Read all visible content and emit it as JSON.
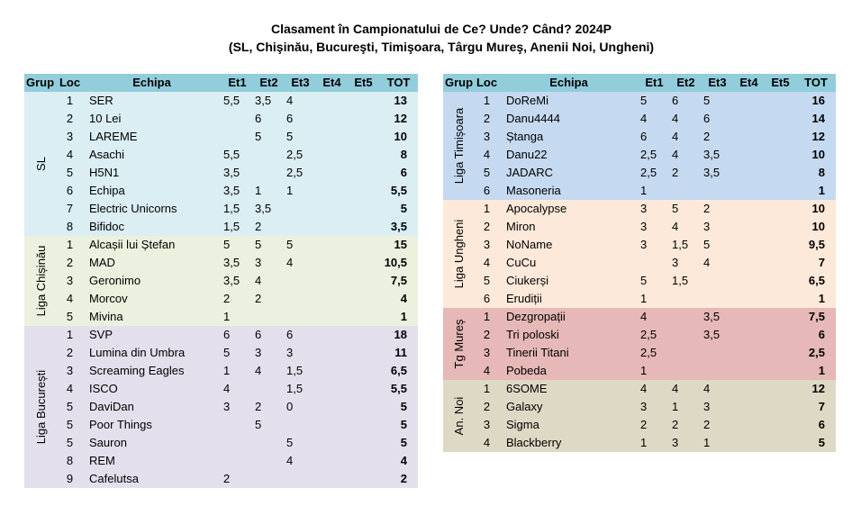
{
  "header": {
    "title_line1": "Clasament în Campionatului de Ce? Unde? Când? 2024P",
    "title_line2": "(SL, Chişinău, Bucureşti, Timişoara, Târgu Mureş, Anenii Noi, Ungheni)"
  },
  "columns": {
    "grup": "Grup",
    "loc": "Loc",
    "echipa": "Echipa",
    "et1": "Et1",
    "et2": "Et2",
    "et3": "Et3",
    "et4": "Et4",
    "et5": "Et5",
    "tot": "TOT"
  },
  "left_groups": [
    {
      "label": "SL",
      "color": "#daeef3",
      "rows": [
        {
          "loc": "1",
          "name": "SER",
          "et1": "5,5",
          "et2": "3,5",
          "et3": "4",
          "et4": "",
          "et5": "",
          "tot": "13"
        },
        {
          "loc": "2",
          "name": "10 Lei",
          "et1": "",
          "et2": "6",
          "et3": "6",
          "et4": "",
          "et5": "",
          "tot": "12"
        },
        {
          "loc": "3",
          "name": "LAREME",
          "et1": "",
          "et2": "5",
          "et3": "5",
          "et4": "",
          "et5": "",
          "tot": "10"
        },
        {
          "loc": "4",
          "name": "Asachi",
          "et1": "5,5",
          "et2": "",
          "et3": "2,5",
          "et4": "",
          "et5": "",
          "tot": "8"
        },
        {
          "loc": "5",
          "name": "H5N1",
          "et1": "3,5",
          "et2": "",
          "et3": "2,5",
          "et4": "",
          "et5": "",
          "tot": "6"
        },
        {
          "loc": "6",
          "name": "Echipa",
          "et1": "3,5",
          "et2": "1",
          "et3": "1",
          "et4": "",
          "et5": "",
          "tot": "5,5"
        },
        {
          "loc": "7",
          "name": "Electric Unicorns",
          "et1": "1,5",
          "et2": "3,5",
          "et3": "",
          "et4": "",
          "et5": "",
          "tot": "5"
        },
        {
          "loc": "8",
          "name": "Bifidoc",
          "et1": "1,5",
          "et2": "2",
          "et3": "",
          "et4": "",
          "et5": "",
          "tot": "3,5"
        }
      ]
    },
    {
      "label": "Liga Chișinău",
      "color": "#ebf1de",
      "rows": [
        {
          "loc": "1",
          "name": "Alcașii lui Ștefan",
          "et1": "5",
          "et2": "5",
          "et3": "5",
          "et4": "",
          "et5": "",
          "tot": "15"
        },
        {
          "loc": "2",
          "name": "MAD",
          "et1": "3,5",
          "et2": "3",
          "et3": "4",
          "et4": "",
          "et5": "",
          "tot": "10,5"
        },
        {
          "loc": "3",
          "name": "Geronimo",
          "et1": "3,5",
          "et2": "4",
          "et3": "",
          "et4": "",
          "et5": "",
          "tot": "7,5"
        },
        {
          "loc": "4",
          "name": "Morcov",
          "et1": "2",
          "et2": "2",
          "et3": "",
          "et4": "",
          "et5": "",
          "tot": "4"
        },
        {
          "loc": "5",
          "name": "Mivina",
          "et1": "1",
          "et2": "",
          "et3": "",
          "et4": "",
          "et5": "",
          "tot": "1"
        }
      ]
    },
    {
      "label": "Liga București",
      "color": "#e4dfec",
      "rows": [
        {
          "loc": "1",
          "name": "SVP",
          "et1": "6",
          "et2": "6",
          "et3": "6",
          "et4": "",
          "et5": "",
          "tot": "18"
        },
        {
          "loc": "2",
          "name": "Lumina din Umbra",
          "et1": "5",
          "et2": "3",
          "et3": "3",
          "et4": "",
          "et5": "",
          "tot": "11"
        },
        {
          "loc": "3",
          "name": "Screaming Eagles",
          "et1": "1",
          "et2": "4",
          "et3": "1,5",
          "et4": "",
          "et5": "",
          "tot": "6,5"
        },
        {
          "loc": "4",
          "name": "ISCO",
          "et1": "4",
          "et2": "",
          "et3": "1,5",
          "et4": "",
          "et5": "",
          "tot": "5,5"
        },
        {
          "loc": "5",
          "name": "DaviDan",
          "et1": "3",
          "et2": "2",
          "et3": "0",
          "et4": "",
          "et5": "",
          "tot": "5"
        },
        {
          "loc": "5",
          "name": "Poor Things",
          "et1": "",
          "et2": "5",
          "et3": "",
          "et4": "",
          "et5": "",
          "tot": "5"
        },
        {
          "loc": "5",
          "name": "Sauron",
          "et1": "",
          "et2": "",
          "et3": "5",
          "et4": "",
          "et5": "",
          "tot": "5"
        },
        {
          "loc": "8",
          "name": "REM",
          "et1": "",
          "et2": "",
          "et3": "4",
          "et4": "",
          "et5": "",
          "tot": "4"
        },
        {
          "loc": "9",
          "name": "Cafelutsa",
          "et1": "2",
          "et2": "",
          "et3": "",
          "et4": "",
          "et5": "",
          "tot": "2"
        }
      ]
    }
  ],
  "right_groups": [
    {
      "label": "Liga Timișoara",
      "color": "#c5d9f1",
      "rows": [
        {
          "loc": "1",
          "name": "DoReMi",
          "et1": "5",
          "et2": "6",
          "et3": "5",
          "et4": "",
          "et5": "",
          "tot": "16"
        },
        {
          "loc": "2",
          "name": "Danu4444",
          "et1": "4",
          "et2": "4",
          "et3": "6",
          "et4": "",
          "et5": "",
          "tot": "14"
        },
        {
          "loc": "3",
          "name": "Ștanga",
          "et1": "6",
          "et2": "4",
          "et3": "2",
          "et4": "",
          "et5": "",
          "tot": "12"
        },
        {
          "loc": "4",
          "name": "Danu22",
          "et1": "2,5",
          "et2": "4",
          "et3": "3,5",
          "et4": "",
          "et5": "",
          "tot": "10"
        },
        {
          "loc": "5",
          "name": "JADARC",
          "et1": "2,5",
          "et2": "2",
          "et3": "3,5",
          "et4": "",
          "et5": "",
          "tot": "8"
        },
        {
          "loc": "6",
          "name": "Masoneria",
          "et1": "1",
          "et2": "",
          "et3": "",
          "et4": "",
          "et5": "",
          "tot": "1"
        }
      ]
    },
    {
      "label": "Liga Ungheni",
      "color": "#fde9d9",
      "rows": [
        {
          "loc": "1",
          "name": "Apocalypse",
          "et1": "3",
          "et2": "5",
          "et3": "2",
          "et4": "",
          "et5": "",
          "tot": "10"
        },
        {
          "loc": "2",
          "name": "Miron",
          "et1": "3",
          "et2": "4",
          "et3": "3",
          "et4": "",
          "et5": "",
          "tot": "10"
        },
        {
          "loc": "3",
          "name": "NoName",
          "et1": "3",
          "et2": "1,5",
          "et3": "5",
          "et4": "",
          "et5": "",
          "tot": "9,5"
        },
        {
          "loc": "4",
          "name": "CuCu",
          "et1": "",
          "et2": "3",
          "et3": "4",
          "et4": "",
          "et5": "",
          "tot": "7"
        },
        {
          "loc": "5",
          "name": "Ciukerși",
          "et1": "5",
          "et2": "1,5",
          "et3": "",
          "et4": "",
          "et5": "",
          "tot": "6,5"
        },
        {
          "loc": "6",
          "name": "Erudiții",
          "et1": "1",
          "et2": "",
          "et3": "",
          "et4": "",
          "et5": "",
          "tot": "1"
        }
      ]
    },
    {
      "label": "Tg Mureș",
      "color": "#e6b8b7",
      "rows": [
        {
          "loc": "1",
          "name": "Dezgropații",
          "et1": "4",
          "et2": "",
          "et3": "3,5",
          "et4": "",
          "et5": "",
          "tot": "7,5"
        },
        {
          "loc": "2",
          "name": "Tri poloski",
          "et1": "2,5",
          "et2": "",
          "et3": "3,5",
          "et4": "",
          "et5": "",
          "tot": "6"
        },
        {
          "loc": "3",
          "name": "Tinerii Titani",
          "et1": "2,5",
          "et2": "",
          "et3": "",
          "et4": "",
          "et5": "",
          "tot": "2,5"
        },
        {
          "loc": "4",
          "name": "Pobeda",
          "et1": "1",
          "et2": "",
          "et3": "",
          "et4": "",
          "et5": "",
          "tot": "1"
        }
      ]
    },
    {
      "label": "An. Noi",
      "color": "#ddd9c4",
      "rows": [
        {
          "loc": "1",
          "name": "6SOME",
          "et1": "4",
          "et2": "4",
          "et3": "4",
          "et4": "",
          "et5": "",
          "tot": "12"
        },
        {
          "loc": "2",
          "name": "Galaxy",
          "et1": "3",
          "et2": "1",
          "et3": "3",
          "et4": "",
          "et5": "",
          "tot": "7"
        },
        {
          "loc": "3",
          "name": "Sigma",
          "et1": "2",
          "et2": "2",
          "et3": "2",
          "et4": "",
          "et5": "",
          "tot": "6"
        },
        {
          "loc": "4",
          "name": "Blackberry",
          "et1": "1",
          "et2": "3",
          "et3": "1",
          "et4": "",
          "et5": "",
          "tot": "5"
        }
      ]
    }
  ]
}
